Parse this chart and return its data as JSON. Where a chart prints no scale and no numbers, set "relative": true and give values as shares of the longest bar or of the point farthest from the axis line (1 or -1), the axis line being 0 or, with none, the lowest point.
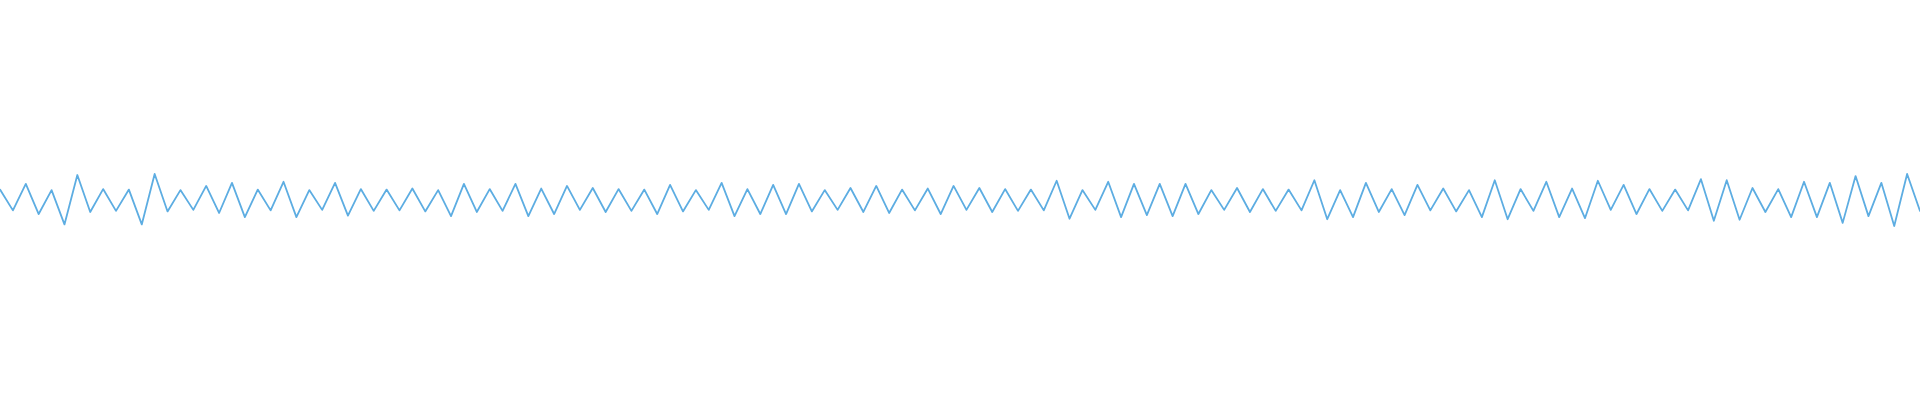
{
  "chart_data": {
    "type": "line",
    "relative": true,
    "color": "#5dade2",
    "categories": [
      null,
      null,
      null,
      null,
      null,
      null,
      null,
      null,
      null,
      null,
      null,
      null,
      null,
      null,
      null,
      null,
      null,
      null,
      null,
      null,
      null,
      null,
      null,
      null,
      null,
      null,
      null,
      null,
      null,
      null,
      null,
      null,
      null,
      null,
      null,
      null,
      null,
      null,
      null,
      null,
      null,
      null,
      null,
      null,
      null,
      null,
      null,
      null,
      null,
      null,
      null,
      null,
      null,
      null,
      null,
      null,
      null,
      null,
      null,
      null,
      null,
      null,
      null,
      null,
      null,
      null,
      null,
      null,
      null,
      null,
      null,
      null,
      null,
      null,
      null,
      null,
      null,
      null,
      null,
      null,
      null,
      null,
      null,
      null,
      null,
      null,
      null,
      null,
      null,
      null,
      null,
      null,
      null,
      null,
      null,
      null,
      null,
      null,
      null,
      null,
      null,
      null,
      null,
      null,
      null,
      null,
      null,
      null,
      null,
      null,
      null,
      null,
      null,
      null,
      null,
      null,
      null,
      null,
      null,
      null,
      null,
      null,
      null,
      null,
      null,
      null,
      null,
      null,
      null,
      null,
      null,
      null,
      null,
      null,
      null,
      null,
      null,
      null,
      null,
      null,
      null,
      null,
      null,
      null,
      null,
      null,
      null,
      null,
      null,
      null
    ],
    "values": [
      0.7,
      0.3,
      0.81,
      0.23,
      0.69,
      0.03,
      0.98,
      0.27,
      0.71,
      0.29,
      0.7,
      0.03,
      1.0,
      0.28,
      0.69,
      0.31,
      0.77,
      0.25,
      0.83,
      0.17,
      0.7,
      0.3,
      0.85,
      0.17,
      0.69,
      0.31,
      0.83,
      0.2,
      0.71,
      0.29,
      0.7,
      0.3,
      0.72,
      0.28,
      0.69,
      0.19,
      0.81,
      0.27,
      0.71,
      0.29,
      0.81,
      0.19,
      0.72,
      0.23,
      0.77,
      0.31,
      0.73,
      0.27,
      0.71,
      0.29,
      0.7,
      0.23,
      0.79,
      0.28,
      0.69,
      0.31,
      0.83,
      0.19,
      0.71,
      0.23,
      0.79,
      0.23,
      0.81,
      0.28,
      0.69,
      0.31,
      0.73,
      0.27,
      0.77,
      0.25,
      0.7,
      0.3,
      0.72,
      0.23,
      0.77,
      0.31,
      0.73,
      0.27,
      0.71,
      0.29,
      0.7,
      0.3,
      0.87,
      0.14,
      0.69,
      0.31,
      0.85,
      0.17,
      0.81,
      0.21,
      0.81,
      0.19,
      0.81,
      0.23,
      0.69,
      0.31,
      0.73,
      0.27,
      0.71,
      0.29,
      0.7,
      0.3,
      0.88,
      0.13,
      0.69,
      0.17,
      0.83,
      0.27,
      0.71,
      0.21,
      0.79,
      0.3,
      0.72,
      0.28,
      0.69,
      0.17,
      0.88,
      0.13,
      0.71,
      0.29,
      0.85,
      0.17,
      0.72,
      0.15,
      0.87,
      0.31,
      0.79,
      0.23,
      0.71,
      0.29,
      0.7,
      0.3,
      0.9,
      0.1,
      0.88,
      0.12,
      0.73,
      0.27,
      0.71,
      0.17,
      0.85,
      0.17,
      0.83,
      0.06,
      0.96,
      0.19,
      0.83,
      0.0,
      1.0,
      0.29
    ]
  }
}
